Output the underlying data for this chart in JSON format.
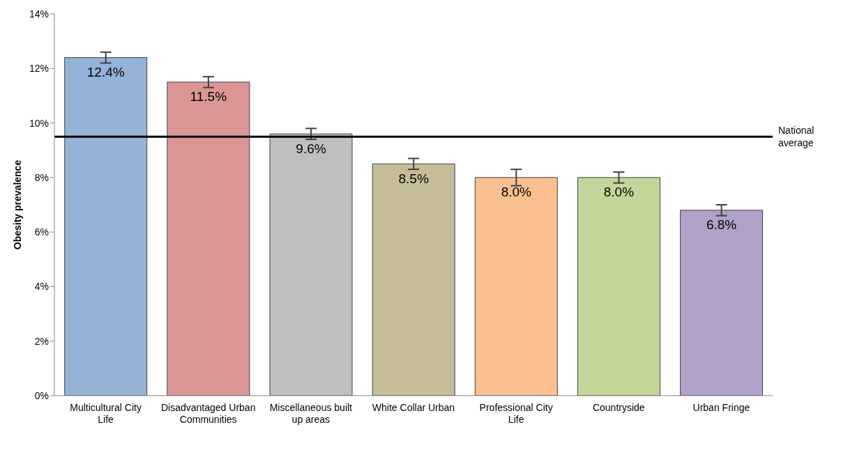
{
  "chart_data": {
    "type": "bar",
    "ylabel": "Obesity prevalence",
    "categories": [
      "Multicultural City Life",
      "Disadvantaged Urban Communities",
      "Miscellaneous built up areas",
      "White Collar Urban",
      "Professional City Life",
      "Countryside",
      "Urban Fringe"
    ],
    "values": [
      12.4,
      11.5,
      9.6,
      8.5,
      8.0,
      8.0,
      6.8
    ],
    "value_labels": [
      "12.4%",
      "11.5%",
      "9.6%",
      "8.5%",
      "8.0%",
      "8.0%",
      "6.8%"
    ],
    "errors": [
      0.2,
      0.2,
      0.2,
      0.2,
      0.3,
      0.2,
      0.2
    ],
    "colors": [
      "#95b3d7",
      "#da9694",
      "#bfbfbf",
      "#c4bd97",
      "#fac090",
      "#c4d79b",
      "#b1a0c7"
    ],
    "ylim": [
      0,
      14
    ],
    "yticks": [
      {
        "value": 0,
        "label": "0%"
      },
      {
        "value": 2,
        "label": "2%"
      },
      {
        "value": 4,
        "label": "4%"
      },
      {
        "value": 6,
        "label": "6%"
      },
      {
        "value": 8,
        "label": "8%"
      },
      {
        "value": 10,
        "label": "10%"
      },
      {
        "value": 12,
        "label": "12%"
      },
      {
        "value": 14,
        "label": "14%"
      }
    ],
    "ref_lines": [
      {
        "axis": "y",
        "value": 9.5,
        "label": "National average",
        "color": "#000000"
      }
    ],
    "grid": false,
    "legend": false
  }
}
